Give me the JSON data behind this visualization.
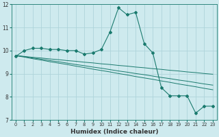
{
  "xlabel": "Humidex (Indice chaleur)",
  "bg_color": "#ceeaee",
  "grid_color": "#aed4da",
  "line_color": "#1a7a6e",
  "xlim": [
    -0.5,
    23.5
  ],
  "ylim": [
    7,
    12
  ],
  "yticks": [
    7,
    8,
    9,
    10,
    11,
    12
  ],
  "xticks": [
    0,
    1,
    2,
    3,
    4,
    5,
    6,
    7,
    8,
    9,
    10,
    11,
    12,
    13,
    14,
    15,
    16,
    17,
    18,
    19,
    20,
    21,
    22,
    23
  ],
  "series1_x": [
    0,
    1,
    2,
    3,
    4,
    5,
    6,
    7,
    8,
    9,
    10,
    11,
    12,
    13,
    14,
    15,
    16,
    17,
    18,
    19,
    20,
    21,
    22,
    23
  ],
  "series1_y": [
    9.75,
    10.0,
    10.1,
    10.1,
    10.05,
    10.05,
    10.0,
    10.0,
    9.85,
    9.9,
    10.05,
    10.8,
    11.85,
    11.55,
    11.65,
    10.3,
    9.9,
    8.4,
    8.05,
    8.05,
    8.05,
    7.3,
    7.6,
    7.6
  ],
  "series2_x": [
    0,
    1,
    2,
    3,
    4,
    5,
    6,
    7,
    8,
    9,
    10,
    11,
    12,
    13,
    14,
    15,
    16,
    17,
    18,
    19,
    20,
    21,
    22,
    23
  ],
  "series2_y": [
    9.78,
    9.75,
    9.71,
    9.68,
    9.64,
    9.61,
    9.57,
    9.54,
    9.5,
    9.47,
    9.43,
    9.4,
    9.36,
    9.33,
    9.29,
    9.26,
    9.22,
    9.19,
    9.15,
    9.12,
    9.08,
    9.05,
    9.01,
    8.98
  ],
  "series3_x": [
    0,
    1,
    2,
    3,
    4,
    5,
    6,
    7,
    8,
    9,
    10,
    11,
    12,
    13,
    14,
    15,
    16,
    17,
    18,
    19,
    20,
    21,
    22,
    23
  ],
  "series3_y": [
    9.8,
    9.74,
    9.68,
    9.63,
    9.57,
    9.52,
    9.46,
    9.4,
    9.35,
    9.29,
    9.24,
    9.18,
    9.12,
    9.07,
    9.01,
    8.96,
    8.9,
    8.84,
    8.79,
    8.73,
    8.68,
    8.62,
    8.56,
    8.51
  ],
  "series4_x": [
    0,
    1,
    2,
    3,
    4,
    5,
    6,
    7,
    8,
    9,
    10,
    11,
    12,
    13,
    14,
    15,
    16,
    17,
    18,
    19,
    20,
    21,
    22,
    23
  ],
  "series4_y": [
    9.78,
    9.72,
    9.65,
    9.59,
    9.52,
    9.46,
    9.4,
    9.33,
    9.27,
    9.2,
    9.14,
    9.08,
    9.01,
    8.95,
    8.88,
    8.82,
    8.76,
    8.69,
    8.63,
    8.56,
    8.5,
    8.44,
    8.37,
    8.31
  ]
}
